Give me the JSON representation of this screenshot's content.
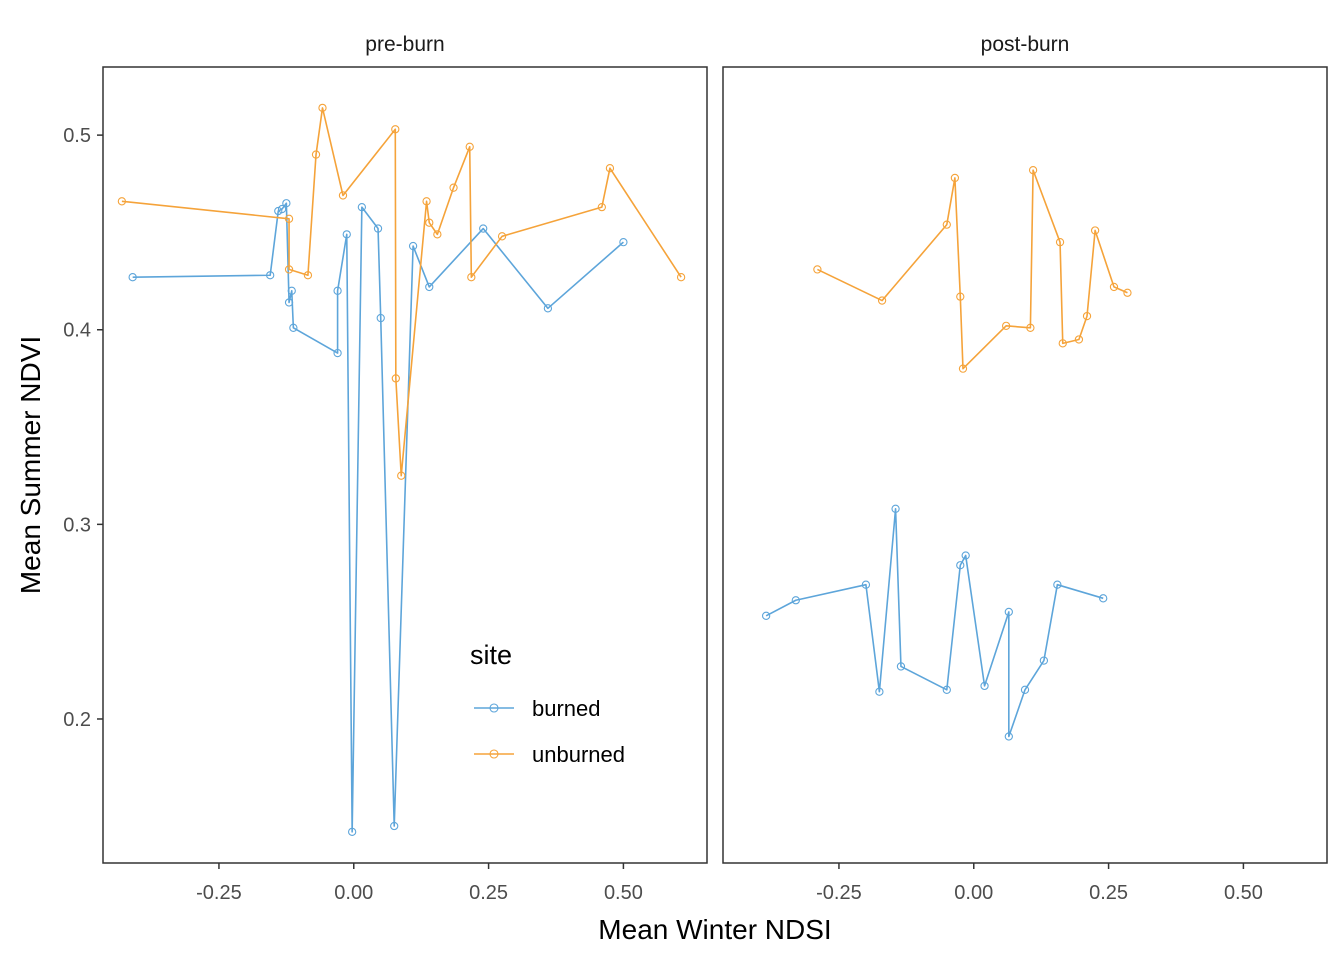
{
  "chart_data": {
    "type": "line",
    "xlabel": "Mean Winter NDSI",
    "ylabel": "Mean Summer NDVI",
    "xlim": [
      -0.465,
      0.655
    ],
    "ylim": [
      0.126,
      0.535
    ],
    "x_ticks": [
      -0.25,
      0.0,
      0.25,
      0.5
    ],
    "x_tick_labels": [
      "-0.25",
      "0.00",
      "0.25",
      "0.50"
    ],
    "y_ticks": [
      0.2,
      0.3,
      0.4,
      0.5
    ],
    "y_tick_labels": [
      "0.2",
      "0.3",
      "0.4",
      "0.5"
    ],
    "grid": false,
    "legend": {
      "title": "site",
      "position": "inside-bottom-right of first panel",
      "entries": [
        {
          "name": "burned",
          "color": "#5DA5DA"
        },
        {
          "name": "unburned",
          "color": "#F5A33A"
        }
      ]
    },
    "panels": [
      {
        "title": "pre-burn",
        "series": [
          {
            "name": "burned",
            "color": "#5DA5DA",
            "points": [
              [
                -0.41,
                0.427
              ],
              [
                -0.155,
                0.428
              ],
              [
                -0.14,
                0.461
              ],
              [
                -0.133,
                0.462
              ],
              [
                -0.125,
                0.465
              ],
              [
                -0.12,
                0.414
              ],
              [
                -0.115,
                0.42
              ],
              [
                -0.112,
                0.401
              ],
              [
                -0.03,
                0.388
              ],
              [
                -0.03,
                0.42
              ],
              [
                -0.013,
                0.449
              ],
              [
                -0.003,
                0.142
              ],
              [
                0.015,
                0.463
              ],
              [
                0.045,
                0.452
              ],
              [
                0.05,
                0.406
              ],
              [
                0.075,
                0.145
              ],
              [
                0.11,
                0.443
              ],
              [
                0.14,
                0.422
              ],
              [
                0.24,
                0.452
              ],
              [
                0.36,
                0.411
              ],
              [
                0.5,
                0.445
              ]
            ]
          },
          {
            "name": "unburned",
            "color": "#F5A33A",
            "points": [
              [
                -0.43,
                0.466
              ],
              [
                -0.12,
                0.457
              ],
              [
                -0.12,
                0.431
              ],
              [
                -0.085,
                0.428
              ],
              [
                -0.07,
                0.49
              ],
              [
                -0.058,
                0.514
              ],
              [
                -0.02,
                0.469
              ],
              [
                0.077,
                0.503
              ],
              [
                0.078,
                0.375
              ],
              [
                0.088,
                0.325
              ],
              [
                0.135,
                0.466
              ],
              [
                0.14,
                0.455
              ],
              [
                0.155,
                0.449
              ],
              [
                0.185,
                0.473
              ],
              [
                0.215,
                0.494
              ],
              [
                0.218,
                0.427
              ],
              [
                0.275,
                0.448
              ],
              [
                0.46,
                0.463
              ],
              [
                0.475,
                0.483
              ],
              [
                0.607,
                0.427
              ]
            ]
          }
        ]
      },
      {
        "title": "post-burn",
        "series": [
          {
            "name": "burned",
            "color": "#5DA5DA",
            "points": [
              [
                -0.385,
                0.253
              ],
              [
                -0.33,
                0.261
              ],
              [
                -0.2,
                0.269
              ],
              [
                -0.175,
                0.214
              ],
              [
                -0.145,
                0.308
              ],
              [
                -0.135,
                0.227
              ],
              [
                -0.05,
                0.215
              ],
              [
                -0.025,
                0.279
              ],
              [
                -0.015,
                0.284
              ],
              [
                0.02,
                0.217
              ],
              [
                0.065,
                0.255
              ],
              [
                0.065,
                0.191
              ],
              [
                0.095,
                0.215
              ],
              [
                0.13,
                0.23
              ],
              [
                0.155,
                0.269
              ],
              [
                0.24,
                0.262
              ]
            ]
          },
          {
            "name": "unburned",
            "color": "#F5A33A",
            "points": [
              [
                -0.29,
                0.431
              ],
              [
                -0.17,
                0.415
              ],
              [
                -0.05,
                0.454
              ],
              [
                -0.035,
                0.478
              ],
              [
                -0.025,
                0.417
              ],
              [
                -0.02,
                0.38
              ],
              [
                0.06,
                0.402
              ],
              [
                0.105,
                0.401
              ],
              [
                0.11,
                0.482
              ],
              [
                0.16,
                0.445
              ],
              [
                0.165,
                0.393
              ],
              [
                0.195,
                0.395
              ],
              [
                0.21,
                0.407
              ],
              [
                0.225,
                0.451
              ],
              [
                0.26,
                0.422
              ],
              [
                0.285,
                0.419
              ]
            ]
          }
        ]
      }
    ]
  }
}
